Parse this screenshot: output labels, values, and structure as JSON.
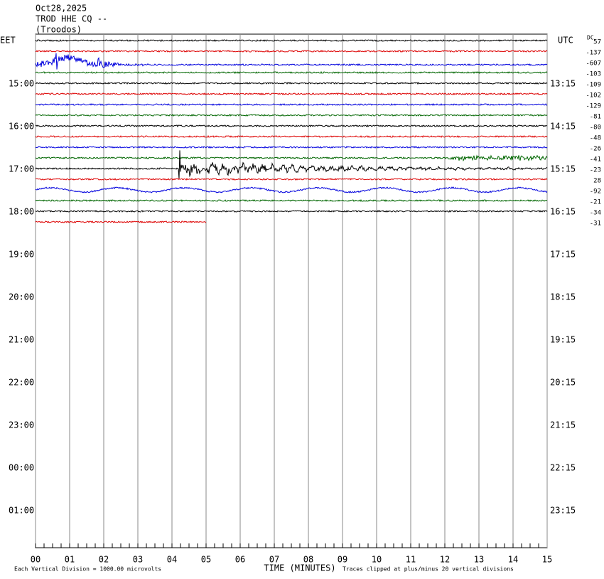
{
  "chart_data": {
    "type": "helicorder",
    "title_lines": [
      "Oct28,2025",
      "TROD HHE CQ --",
      "(Troodos)"
    ],
    "left_zone": "EET",
    "right_zone": "UTC",
    "left_hours": [
      "15:00",
      "16:00",
      "17:00",
      "18:00",
      "19:00",
      "20:00",
      "21:00",
      "22:00",
      "23:00",
      "00:00",
      "01:00"
    ],
    "right_hours": [
      "13:15",
      "14:15",
      "15:15",
      "16:15",
      "17:15",
      "18:15",
      "19:15",
      "20:15",
      "21:15",
      "22:15",
      "23:15"
    ],
    "dc_label": "DC",
    "dc_offsets": [
      57,
      -137,
      -607,
      -103,
      -109,
      -102,
      -129,
      -81,
      -80,
      -48,
      -26,
      -41,
      -23,
      28,
      -92,
      -21,
      -34,
      -31
    ],
    "trace_colors": [
      "#000000",
      "#dd0000",
      "#0000dd",
      "#006600"
    ],
    "xlim": [
      0,
      15
    ],
    "xticks": [
      {
        "value": 0,
        "label": "00"
      },
      {
        "value": 1,
        "label": "01"
      },
      {
        "value": 2,
        "label": "02"
      },
      {
        "value": 3,
        "label": "03"
      },
      {
        "value": 4,
        "label": "04"
      },
      {
        "value": 5,
        "label": "05"
      },
      {
        "value": 6,
        "label": "06"
      },
      {
        "value": 7,
        "label": "07"
      },
      {
        "value": 8,
        "label": "08"
      },
      {
        "value": 9,
        "label": "09"
      },
      {
        "value": 10,
        "label": "10"
      },
      {
        "value": 11,
        "label": "11"
      },
      {
        "value": 12,
        "label": "12"
      },
      {
        "value": 13,
        "label": "13"
      },
      {
        "value": 14,
        "label": "14"
      },
      15
    ],
    "xlabel": "TIME (MINUTES)",
    "scale_note": "Each Vertical Division = 1000.00 microvolts",
    "clip_note": "Traces clipped at plus/minus 20 vertical divisions"
  }
}
